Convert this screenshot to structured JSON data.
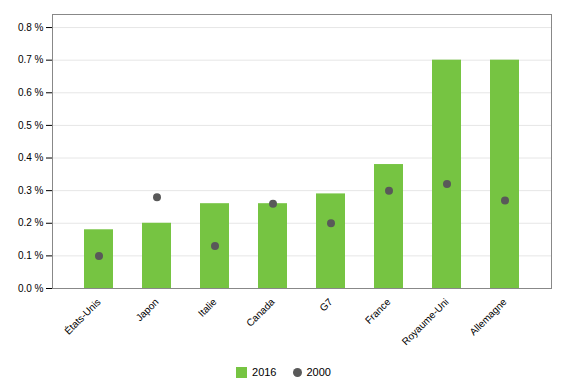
{
  "chart_data": {
    "type": "bar",
    "categories": [
      "États-Unis",
      "Japon",
      "Italie",
      "Canada",
      "G7",
      "France",
      "Royaume-Uni",
      "Allemagne"
    ],
    "series": [
      {
        "name": "2016",
        "type": "bar",
        "color": "#76c442",
        "values": [
          0.18,
          0.2,
          0.26,
          0.26,
          0.29,
          0.38,
          0.7,
          0.7
        ]
      },
      {
        "name": "2000",
        "type": "scatter",
        "marker": "circle",
        "color": "#595959",
        "values": [
          0.1,
          0.28,
          0.13,
          0.26,
          0.2,
          0.3,
          0.32,
          0.27
        ]
      }
    ],
    "ylim": [
      0.0,
      0.84
    ],
    "yticks": [
      {
        "value": 0.0,
        "label": "0.0 %"
      },
      {
        "value": 0.1,
        "label": "0.1 %"
      },
      {
        "value": 0.2,
        "label": "0.2 %"
      },
      {
        "value": 0.3,
        "label": "0.3 %"
      },
      {
        "value": 0.4,
        "label": "0.4 %"
      },
      {
        "value": 0.5,
        "label": "0.5 %"
      },
      {
        "value": 0.6,
        "label": "0.6 %"
      },
      {
        "value": 0.7,
        "label": "0.7 %"
      },
      {
        "value": 0.8,
        "label": "0.8 %"
      }
    ],
    "grid": true,
    "legend": "bottom"
  }
}
